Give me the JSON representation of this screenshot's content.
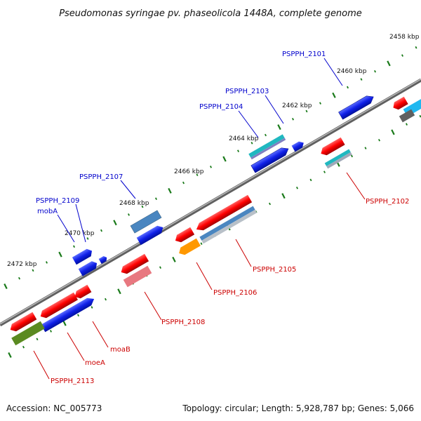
{
  "title": "Pseudomonas syringae pv. phaseolicola 1448A, complete genome",
  "accession": "Accession: NC_005773",
  "topology": "Topology: circular; Length: 5,928,787 bp; Genes: 5,066",
  "tick_labels": [
    "2458 kbp",
    "2460 kbp",
    "2462 kbp",
    "2464 kbp",
    "2466 kbp",
    "2468 kbp",
    "2470 kbp",
    "2472 kbp"
  ],
  "forward_labels": [
    "PSPPH_2101",
    "PSPPH_2103",
    "PSPPH_2104",
    "PSPPH_2107",
    "PSPPH_2109",
    "mobA"
  ],
  "reverse_labels": [
    "PSPPH_2102",
    "PSPPH_2105",
    "PSPPH_2106",
    "PSPPH_2108",
    "moaB",
    "moeA",
    "PSPPH_2113"
  ],
  "colors": {
    "backbone": "#808080",
    "forward_label": "#0000cc",
    "reverse_label": "#cc0000",
    "tick": "#1a7a1a",
    "blue": "#0a1ee0",
    "steel": "#4a86c0",
    "teal": "#20b8c0",
    "red": "#f00000",
    "pink": "#e87880",
    "orange": "#ff9800",
    "olive": "#5a8a20",
    "gray": "#8a96a0"
  }
}
